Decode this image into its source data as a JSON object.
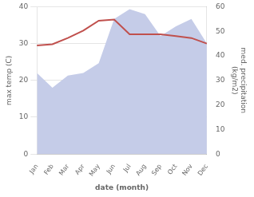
{
  "chart_data": {
    "type": "line",
    "categories": [
      "Jan",
      "Feb",
      "Mar",
      "Apr",
      "May",
      "Jun",
      "Jul",
      "Aug",
      "Sep",
      "Oct",
      "Nov",
      "Dec"
    ],
    "series": [
      {
        "type": "area",
        "axis": "y2",
        "color": "#c5cce8",
        "values": [
          33.0,
          27.0,
          32.0,
          33.0,
          37.0,
          55.0,
          59.0,
          57.0,
          48.0,
          52.0,
          55.0,
          45.0
        ]
      },
      {
        "type": "line",
        "axis": "y",
        "color": "#c0504d",
        "values": [
          29.5,
          29.8,
          31.5,
          33.5,
          36.2,
          36.5,
          32.5,
          32.5,
          32.5,
          32.0,
          31.5,
          30.0
        ]
      }
    ],
    "xlabel": "date (month)",
    "ylabel": "max temp (C)",
    "y2label": "med. precipitation\n(kg/m2)",
    "ylim": [
      0,
      40
    ],
    "yticks": [
      0,
      10,
      20,
      30,
      40
    ],
    "y2lim": [
      0,
      60
    ],
    "y2ticks": [
      0,
      10,
      20,
      30,
      40,
      50,
      60
    ],
    "grid": true
  }
}
